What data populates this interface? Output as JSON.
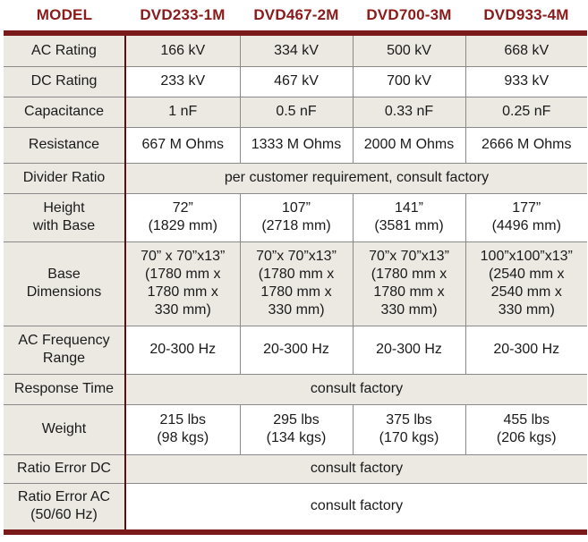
{
  "header": {
    "model": "MODEL",
    "models": [
      "DVD233-1M",
      "DVD467-2M",
      "DVD700-3M",
      "DVD933-4M"
    ]
  },
  "rows": [
    {
      "label": "AC Rating",
      "values": [
        "166 kV",
        "334 kV",
        "500 kV",
        "668 kV"
      ]
    },
    {
      "label": "DC Rating",
      "values": [
        "233 kV",
        "467 kV",
        "700 kV",
        "933 kV"
      ]
    },
    {
      "label": "Capacitance",
      "values": [
        "1 nF",
        "0.5 nF",
        "0.33 nF",
        "0.25 nF"
      ]
    },
    {
      "label": "Resistance",
      "values": [
        "667 M Ohms",
        "1333 M Ohms",
        "2000 M Ohms",
        "2666 M Ohms"
      ]
    },
    {
      "label": "Divider Ratio",
      "span": "per customer requirement, consult factory"
    },
    {
      "label": "Height\nwith Base",
      "values": [
        "72”\n(1829 mm)",
        "107”\n(2718 mm)",
        "141”\n(3581 mm)",
        "177”\n(4496 mm)"
      ]
    },
    {
      "label": "Base\nDimensions",
      "values": [
        "70” x 70”x13”\n(1780 mm x\n1780 mm x\n330 mm)",
        "70”x 70”x13”\n(1780 mm x\n1780 mm x\n330 mm)",
        "70”x 70”x13”\n(1780 mm x\n1780 mm x\n330 mm)",
        "100”x100”x13”\n(2540 mm x\n2540 mm x\n330 mm)"
      ]
    },
    {
      "label": "AC Frequency\nRange",
      "values": [
        "20-300 Hz",
        "20-300 Hz",
        "20-300 Hz",
        "20-300 Hz"
      ]
    },
    {
      "label": "Response Time",
      "span": "consult factory"
    },
    {
      "label": "Weight",
      "values": [
        "215 lbs\n(98 kgs)",
        "295 lbs\n(134 kgs)",
        "375 lbs\n(170 kgs)",
        "455 lbs\n(206 kgs)"
      ]
    },
    {
      "label": "Ratio Error DC",
      "span": "consult factory"
    },
    {
      "label": "Ratio Error AC\n(50/60 Hz)",
      "span": "consult factory"
    }
  ]
}
